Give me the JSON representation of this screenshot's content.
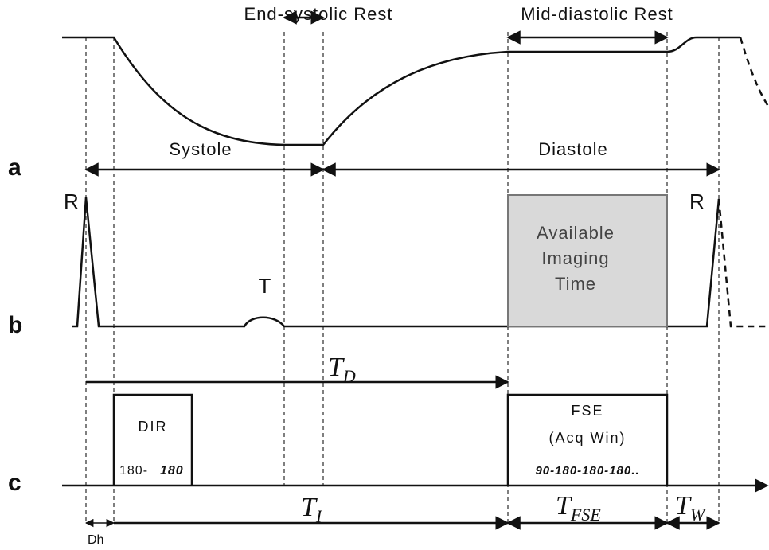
{
  "labels": {
    "end_systolic": "End-systolic Rest",
    "mid_diastolic": "Mid-diastolic Rest",
    "systole": "Systole",
    "diastole": "Diastole",
    "a": "a",
    "b": "b",
    "c": "c",
    "r1": "R",
    "r2": "R",
    "t": "T",
    "imaging": [
      "Available",
      "Imaging",
      "Time"
    ],
    "dir": "DIR",
    "dir_pulse_a": "180-",
    "dir_pulse_b": "180",
    "fse": "FSE",
    "acq": "(Acq Win)",
    "fse_pulses": "90-180-180-180..",
    "dh": "Dh"
  },
  "times": {
    "td": {
      "main": "T",
      "sub": "D"
    },
    "ti": {
      "main": "T",
      "sub": "I"
    },
    "tfse": {
      "main": "T",
      "sub": "FSE"
    },
    "tw": {
      "main": "T",
      "sub": "W"
    }
  }
}
